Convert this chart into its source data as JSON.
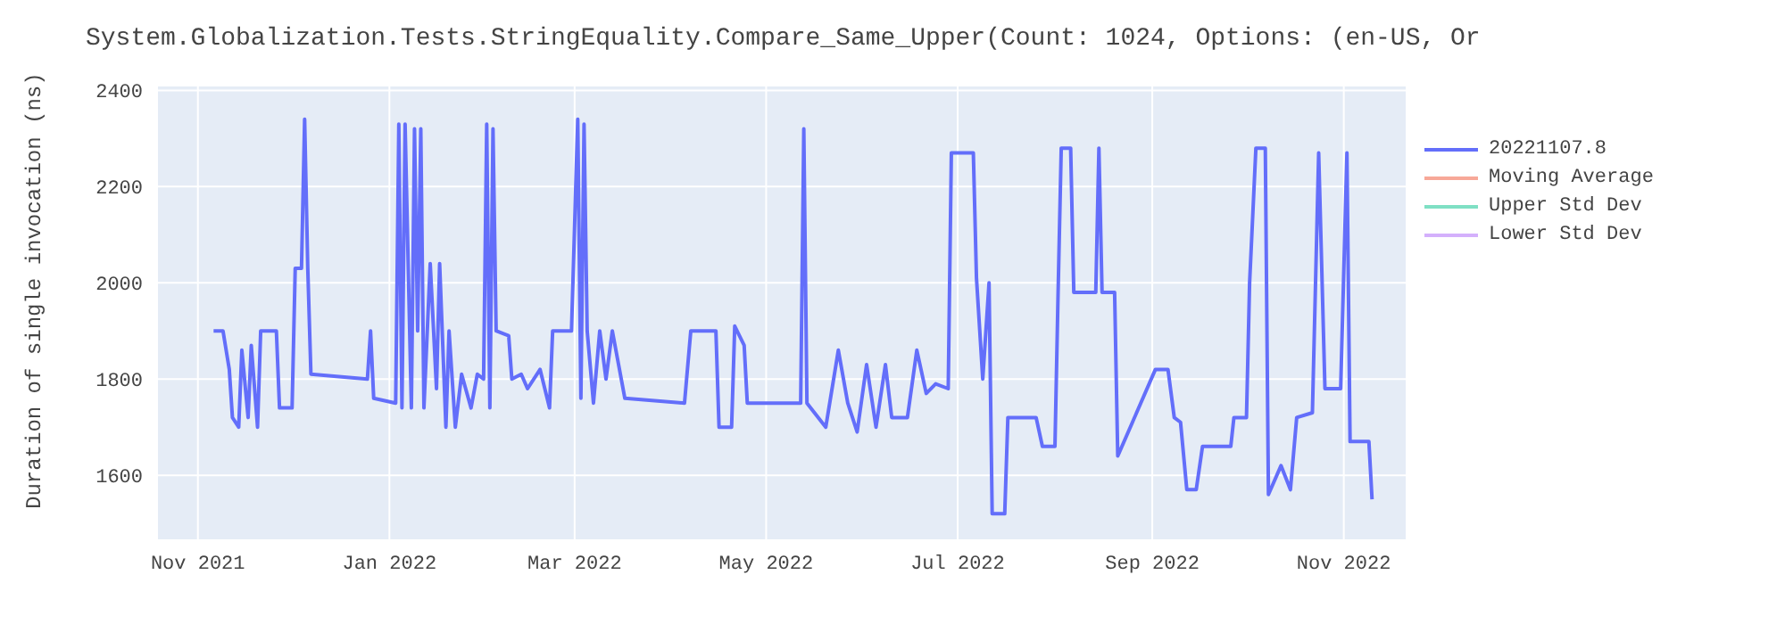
{
  "chart_data": {
    "type": "line",
    "title": "System.Globalization.Tests.StringEquality.Compare_Same_Upper(Count: 1024, Options: (en-US, Or",
    "ylabel": "Duration of single invocation (ns)",
    "x": [
      "2021-11-06",
      "2021-11-09",
      "2021-11-11",
      "2021-11-12",
      "2021-11-14",
      "2021-11-15",
      "2021-11-17",
      "2021-11-18",
      "2021-11-20",
      "2021-11-21",
      "2021-11-26",
      "2021-11-27",
      "2021-12-01",
      "2021-12-02",
      "2021-12-04",
      "2021-12-05",
      "2021-12-06",
      "2021-12-07",
      "2021-12-25",
      "2021-12-26",
      "2021-12-27",
      "2022-01-03",
      "2022-01-04",
      "2022-01-05",
      "2022-01-06",
      "2022-01-08",
      "2022-01-09",
      "2022-01-10",
      "2022-01-11",
      "2022-01-12",
      "2022-01-14",
      "2022-01-16",
      "2022-01-17",
      "2022-01-19",
      "2022-01-20",
      "2022-01-22",
      "2022-01-24",
      "2022-01-27",
      "2022-01-29",
      "2022-01-31",
      "2022-02-01",
      "2022-02-02",
      "2022-02-03",
      "2022-02-04",
      "2022-02-08",
      "2022-02-09",
      "2022-02-12",
      "2022-02-14",
      "2022-02-18",
      "2022-02-21",
      "2022-02-22",
      "2022-02-28",
      "2022-03-02",
      "2022-03-03",
      "2022-03-04",
      "2022-03-05",
      "2022-03-07",
      "2022-03-09",
      "2022-03-11",
      "2022-03-13",
      "2022-03-17",
      "2022-04-05",
      "2022-04-07",
      "2022-04-15",
      "2022-04-16",
      "2022-04-20",
      "2022-04-21",
      "2022-04-24",
      "2022-04-25",
      "2022-05-12",
      "2022-05-13",
      "2022-05-14",
      "2022-05-20",
      "2022-05-24",
      "2022-05-27",
      "2022-05-30",
      "2022-06-02",
      "2022-06-05",
      "2022-06-08",
      "2022-06-10",
      "2022-06-15",
      "2022-06-18",
      "2022-06-21",
      "2022-06-24",
      "2022-06-28",
      "2022-06-29",
      "2022-07-06",
      "2022-07-07",
      "2022-07-09",
      "2022-07-11",
      "2022-07-12",
      "2022-07-16",
      "2022-07-17",
      "2022-07-26",
      "2022-07-28",
      "2022-08-01",
      "2022-08-02",
      "2022-08-03",
      "2022-08-06",
      "2022-08-07",
      "2022-08-14",
      "2022-08-15",
      "2022-08-16",
      "2022-08-20",
      "2022-08-21",
      "2022-09-02",
      "2022-09-06",
      "2022-09-08",
      "2022-09-10",
      "2022-09-12",
      "2022-09-15",
      "2022-09-17",
      "2022-09-26",
      "2022-09-27",
      "2022-10-01",
      "2022-10-02",
      "2022-10-04",
      "2022-10-07",
      "2022-10-08",
      "2022-10-12",
      "2022-10-15",
      "2022-10-17",
      "2022-10-22",
      "2022-10-24",
      "2022-10-26",
      "2022-10-31",
      "2022-11-02",
      "2022-11-03",
      "2022-11-09",
      "2022-11-10"
    ],
    "series": [
      {
        "name": "20221107.8",
        "color": "#636efa",
        "values": [
          1900,
          1900,
          1820,
          1720,
          1700,
          1860,
          1720,
          1870,
          1700,
          1900,
          1900,
          1740,
          1740,
          2030,
          2030,
          2340,
          2030,
          1810,
          1800,
          1900,
          1760,
          1750,
          2330,
          1740,
          2330,
          1740,
          2320,
          1900,
          2320,
          1740,
          2040,
          1780,
          2040,
          1700,
          1900,
          1700,
          1810,
          1740,
          1810,
          1800,
          2330,
          1740,
          2320,
          1900,
          1890,
          1800,
          1810,
          1780,
          1820,
          1740,
          1900,
          1900,
          2340,
          1760,
          2330,
          1900,
          1750,
          1900,
          1800,
          1900,
          1760,
          1750,
          1900,
          1900,
          1700,
          1700,
          1910,
          1870,
          1750,
          1750,
          2320,
          1750,
          1700,
          1860,
          1750,
          1690,
          1830,
          1700,
          1830,
          1720,
          1720,
          1860,
          1770,
          1790,
          1780,
          2270,
          2270,
          2010,
          1800,
          2000,
          1520,
          1520,
          1720,
          1720,
          1660,
          1660,
          1980,
          2280,
          2280,
          1980,
          1980,
          2280,
          1980,
          1980,
          1640,
          1820,
          1820,
          1720,
          1710,
          1570,
          1570,
          1660,
          1660,
          1720,
          1720,
          2000,
          2280,
          2280,
          1560,
          1620,
          1570,
          1720,
          1730,
          2270,
          1780,
          1780,
          2270,
          1670,
          1670,
          1550
        ]
      },
      {
        "name": "Moving Average",
        "color": "#f7a898",
        "values": [
          null,
          null,
          null,
          null,
          null,
          null,
          null,
          null,
          null,
          null,
          null,
          null,
          null,
          null,
          null,
          null,
          null,
          null,
          null,
          null,
          null,
          null,
          null,
          null,
          null,
          null,
          null,
          null,
          null,
          null,
          null,
          null,
          null,
          null,
          null,
          null,
          null,
          null,
          null,
          null,
          null,
          null,
          null,
          null,
          null,
          null,
          null,
          null,
          null,
          null,
          null,
          null,
          null,
          null,
          null,
          null,
          null,
          null,
          null,
          null,
          null,
          null,
          null,
          null,
          null,
          null,
          null,
          null,
          null,
          null,
          null,
          null,
          null,
          null,
          null,
          null,
          null,
          null,
          null,
          null,
          null,
          null,
          null,
          null,
          null,
          null,
          null,
          null,
          null,
          null,
          null,
          null,
          null,
          null,
          null,
          null,
          null,
          null,
          null,
          null,
          null,
          null,
          null,
          null,
          null,
          null,
          null,
          null,
          null,
          null,
          null,
          null,
          null,
          null,
          null,
          null,
          null,
          null,
          null,
          null,
          null,
          null,
          null,
          null,
          null,
          null,
          null,
          null,
          null,
          null
        ]
      },
      {
        "name": "Upper Std Dev",
        "color": "#7fe0c4",
        "values": [
          null,
          null,
          null,
          null,
          null,
          null,
          null,
          null,
          null,
          null,
          null,
          null,
          null,
          null,
          null,
          null,
          null,
          null,
          null,
          null,
          null,
          null,
          null,
          null,
          null,
          null,
          null,
          null,
          null,
          null,
          null,
          null,
          null,
          null,
          null,
          null,
          null,
          null,
          null,
          null,
          null,
          null,
          null,
          null,
          null,
          null,
          null,
          null,
          null,
          null,
          null,
          null,
          null,
          null,
          null,
          null,
          null,
          null,
          null,
          null,
          null,
          null,
          null,
          null,
          null,
          null,
          null,
          null,
          null,
          null,
          null,
          null,
          null,
          null,
          null,
          null,
          null,
          null,
          null,
          null,
          null,
          null,
          null,
          null,
          null,
          null,
          null,
          null,
          null,
          null,
          null,
          null,
          null,
          null,
          null,
          null,
          null,
          null,
          null,
          null,
          null,
          null,
          null,
          null,
          null,
          null,
          null,
          null,
          null,
          null,
          null,
          null,
          null,
          null,
          null,
          null,
          null,
          null,
          null,
          null,
          null,
          null,
          null,
          null,
          null,
          null,
          null,
          null,
          null,
          null
        ]
      },
      {
        "name": "Lower Std Dev",
        "color": "#d4b0fc",
        "values": [
          null,
          null,
          null,
          null,
          null,
          null,
          null,
          null,
          null,
          null,
          null,
          null,
          null,
          null,
          null,
          null,
          null,
          null,
          null,
          null,
          null,
          null,
          null,
          null,
          null,
          null,
          null,
          null,
          null,
          null,
          null,
          null,
          null,
          null,
          null,
          null,
          null,
          null,
          null,
          null,
          null,
          null,
          null,
          null,
          null,
          null,
          null,
          null,
          null,
          null,
          null,
          null,
          null,
          null,
          null,
          null,
          null,
          null,
          null,
          null,
          null,
          null,
          null,
          null,
          null,
          null,
          null,
          null,
          null,
          null,
          null,
          null,
          null,
          null,
          null,
          null,
          null,
          null,
          null,
          null,
          null,
          null,
          null,
          null,
          null,
          null,
          null,
          null,
          null,
          null,
          null,
          null,
          null,
          null,
          null,
          null,
          null,
          null,
          null,
          null,
          null,
          null,
          null,
          null,
          null,
          null,
          null,
          null,
          null,
          null,
          null,
          null,
          null,
          null,
          null,
          null,
          null,
          null,
          null,
          null,
          null,
          null,
          null,
          null,
          null,
          null,
          null,
          null,
          null,
          null
        ]
      }
    ],
    "xlim": [
      "2021-10-19",
      "2022-11-21"
    ],
    "xticks": [
      {
        "value": "2021-11-01",
        "label": "Nov 2021"
      },
      {
        "value": "2022-01-01",
        "label": "Jan 2022"
      },
      {
        "value": "2022-03-01",
        "label": "Mar 2022"
      },
      {
        "value": "2022-05-01",
        "label": "May 2022"
      },
      {
        "value": "2022-07-01",
        "label": "Jul 2022"
      },
      {
        "value": "2022-09-01",
        "label": "Sep 2022"
      },
      {
        "value": "2022-11-01",
        "label": "Nov 2022"
      }
    ],
    "ylim": [
      1465,
      2410
    ],
    "yticks": [
      1600,
      1800,
      2000,
      2200,
      2400
    ],
    "grid": true,
    "legend": "top right",
    "line_style": "solid"
  }
}
